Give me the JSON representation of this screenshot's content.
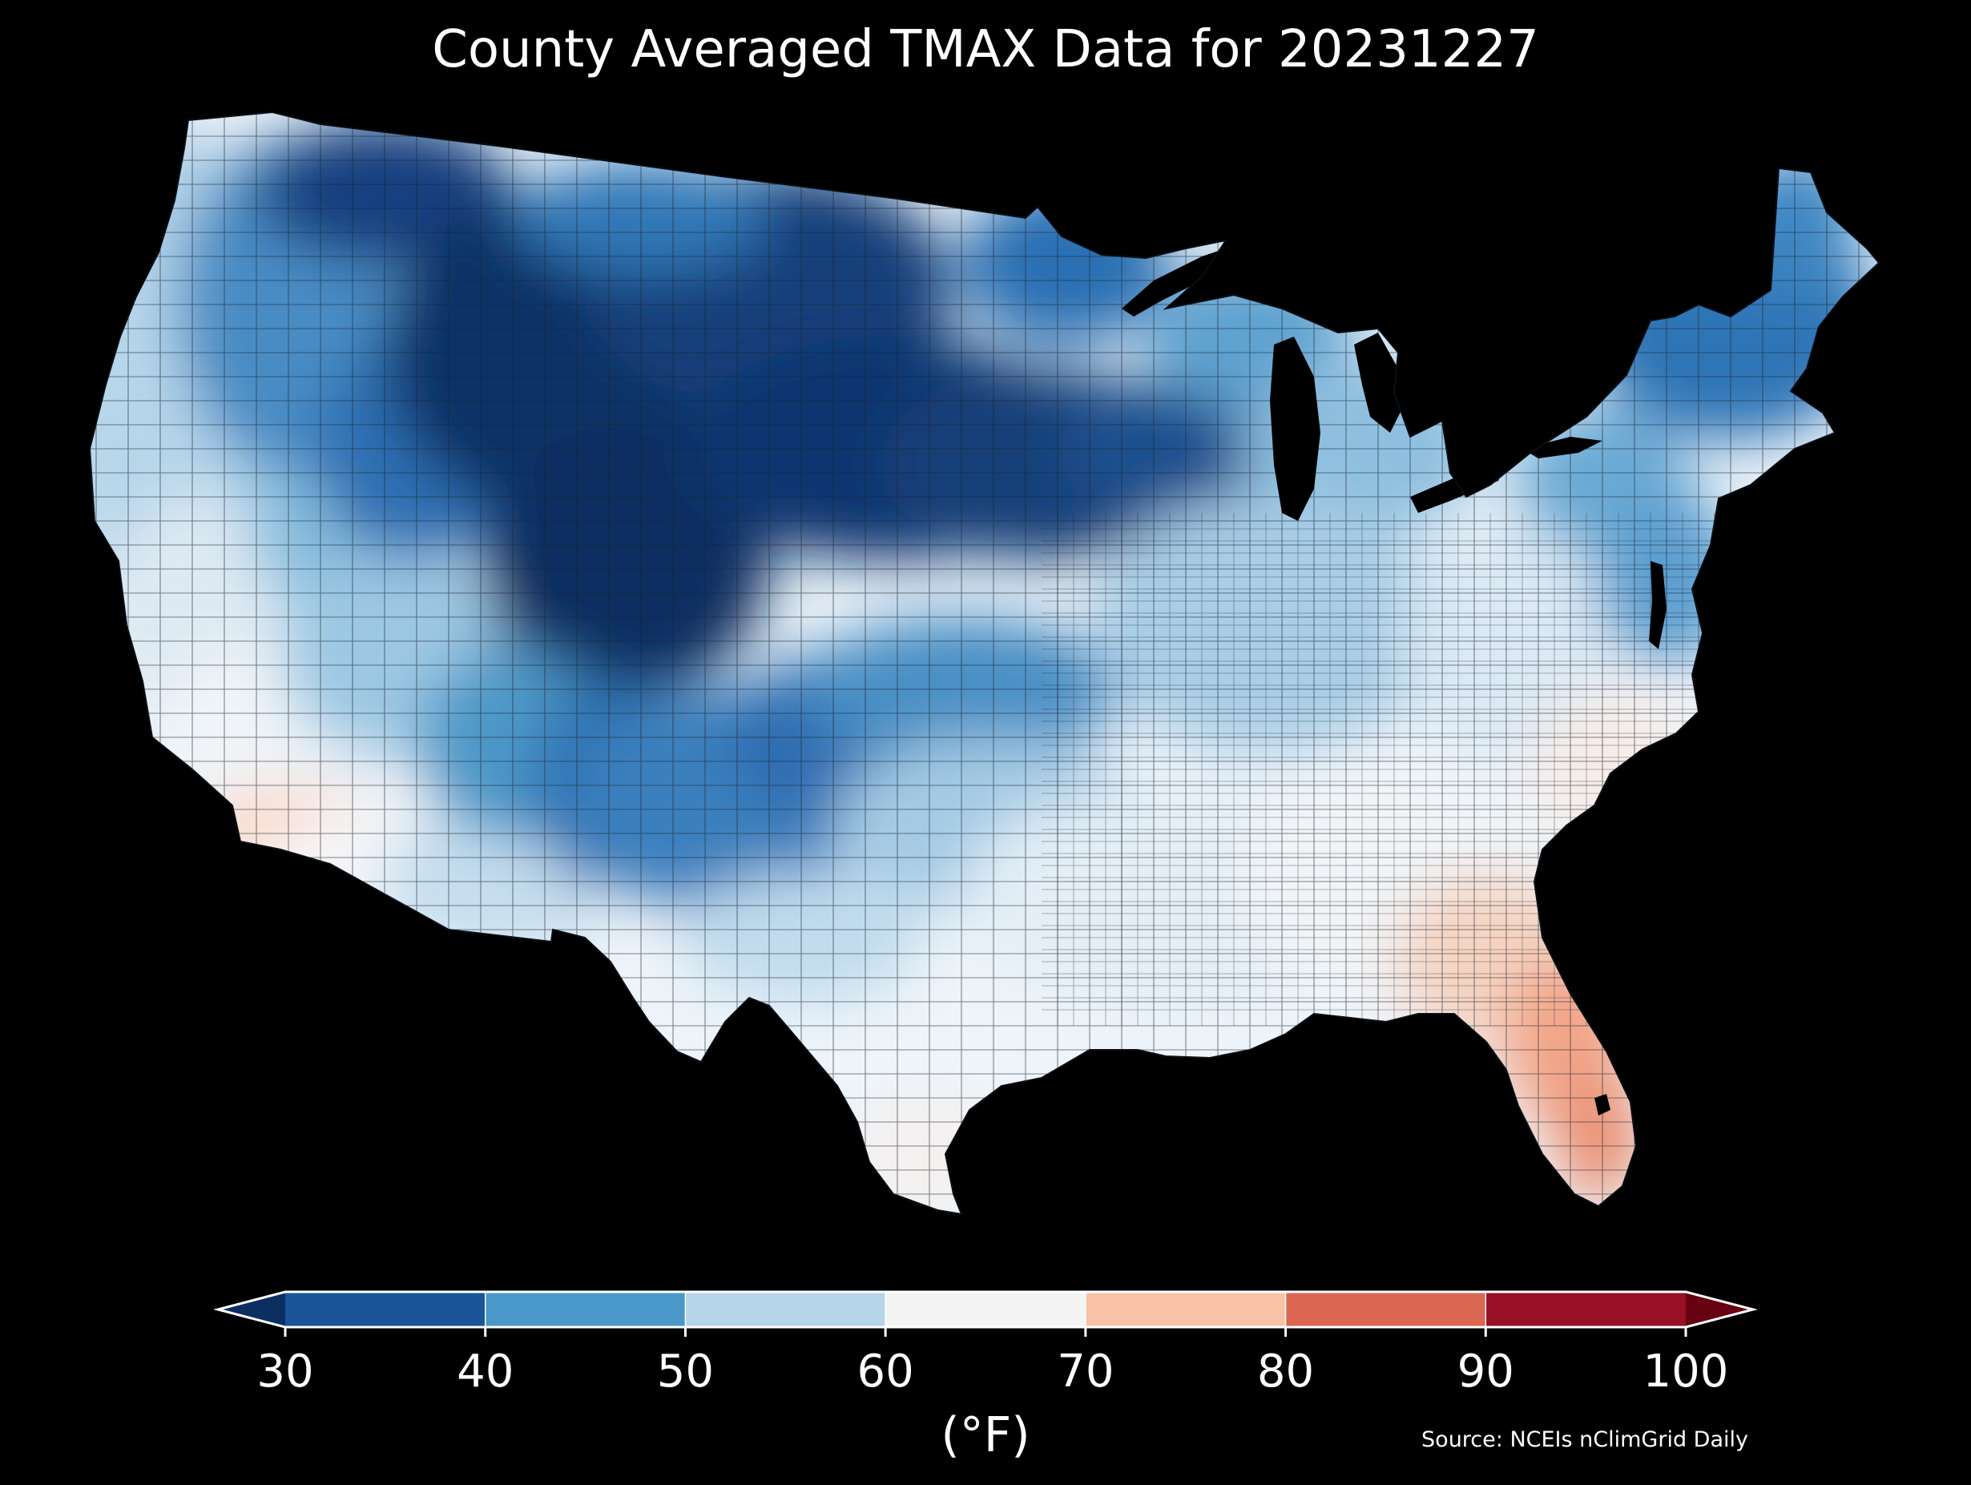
{
  "title": "County Averaged TMAX Data for 20231227",
  "colorbar": {
    "unit_label": "(°F)",
    "ticks": [
      "30",
      "40",
      "50",
      "60",
      "70",
      "80",
      "90",
      "100"
    ],
    "bins": [
      {
        "range": "<30",
        "color": "#0b2f60"
      },
      {
        "range": "30-40",
        "color": "#1a5599"
      },
      {
        "range": "40-50",
        "color": "#4a98c9"
      },
      {
        "range": "50-60",
        "color": "#b5d5e9"
      },
      {
        "range": "60-70",
        "color": "#f4f4f4"
      },
      {
        "range": "70-80",
        "color": "#f8c2a7"
      },
      {
        "range": "80-90",
        "color": "#db6651"
      },
      {
        "range": "90-100",
        "color": "#990f25"
      },
      {
        "range": ">100",
        "color": "#670010"
      }
    ]
  },
  "source": "Source: NCEIs nClimGrid Daily",
  "map": {
    "region": "Contiguous United States counties",
    "background_color": "#000000",
    "border_color": "#1c2430"
  }
}
